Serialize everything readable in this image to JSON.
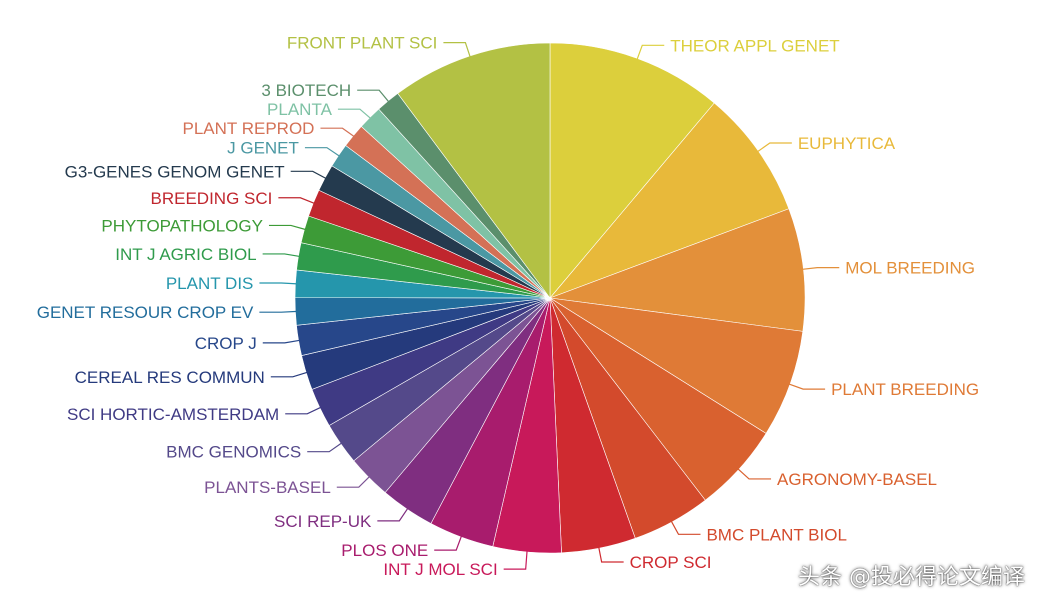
{
  "chart_data": {
    "type": "pie",
    "title": "",
    "slices": [
      {
        "label": "THEOR APPL GENET",
        "value": 11.6,
        "color": "#dccf3c"
      },
      {
        "label": "EUPHYTICA",
        "value": 8.5,
        "color": "#e8b93a"
      },
      {
        "label": "MOL BREEDING",
        "value": 8.1,
        "color": "#e3903a"
      },
      {
        "label": "PLANT BREEDING",
        "value": 7.1,
        "color": "#df7a36"
      },
      {
        "label": "AGRONOMY-BASEL",
        "value": 5.9,
        "color": "#d9612f"
      },
      {
        "label": "BMC PLANT BIOL",
        "value": 5.2,
        "color": "#d34a2c"
      },
      {
        "label": "CROP SCI",
        "value": 4.9,
        "color": "#cf2a30"
      },
      {
        "label": "INT J MOL SCI",
        "value": 4.5,
        "color": "#c8195a"
      },
      {
        "label": "PLOS ONE",
        "value": 4.3,
        "color": "#a81c6d"
      },
      {
        "label": "SCI REP-UK",
        "value": 3.6,
        "color": "#7f2e80"
      },
      {
        "label": "PLANTS-BASEL",
        "value": 2.9,
        "color": "#7c5394"
      },
      {
        "label": "BMC GENOMICS",
        "value": 2.8,
        "color": "#54498a"
      },
      {
        "label": "SCI HORTIC-AMSTERDAM",
        "value": 2.6,
        "color": "#3f3a84"
      },
      {
        "label": "CEREAL RES COMMUN",
        "value": 2.3,
        "color": "#253a7c"
      },
      {
        "label": "CROP J",
        "value": 2.0,
        "color": "#27478a"
      },
      {
        "label": "GENET RESOUR CROP EV",
        "value": 1.8,
        "color": "#226d9c"
      },
      {
        "label": "PLANT DIS",
        "value": 1.8,
        "color": "#2596ac"
      },
      {
        "label": "INT J AGRIC BIOL",
        "value": 1.8,
        "color": "#2f9b4c"
      },
      {
        "label": "PHYTOPATHOLOGY",
        "value": 1.8,
        "color": "#3d9b37"
      },
      {
        "label": "BREEDING SCI",
        "value": 1.8,
        "color": "#c0262e"
      },
      {
        "label": "G3-GENES GENOM GENET",
        "value": 1.8,
        "color": "#243a4e"
      },
      {
        "label": "J GENET",
        "value": 1.6,
        "color": "#4b98a3"
      },
      {
        "label": "PLANT REPROD",
        "value": 1.6,
        "color": "#d47156"
      },
      {
        "label": "PLANTA",
        "value": 1.6,
        "color": "#7fc2a5"
      },
      {
        "label": "3 BIOTECH",
        "value": 1.6,
        "color": "#5b8f6c"
      },
      {
        "label": "FRONT PLANT SCI",
        "value": 10.6,
        "color": "#b3c144"
      }
    ]
  },
  "watermark": "头条 @投必得论文编译"
}
